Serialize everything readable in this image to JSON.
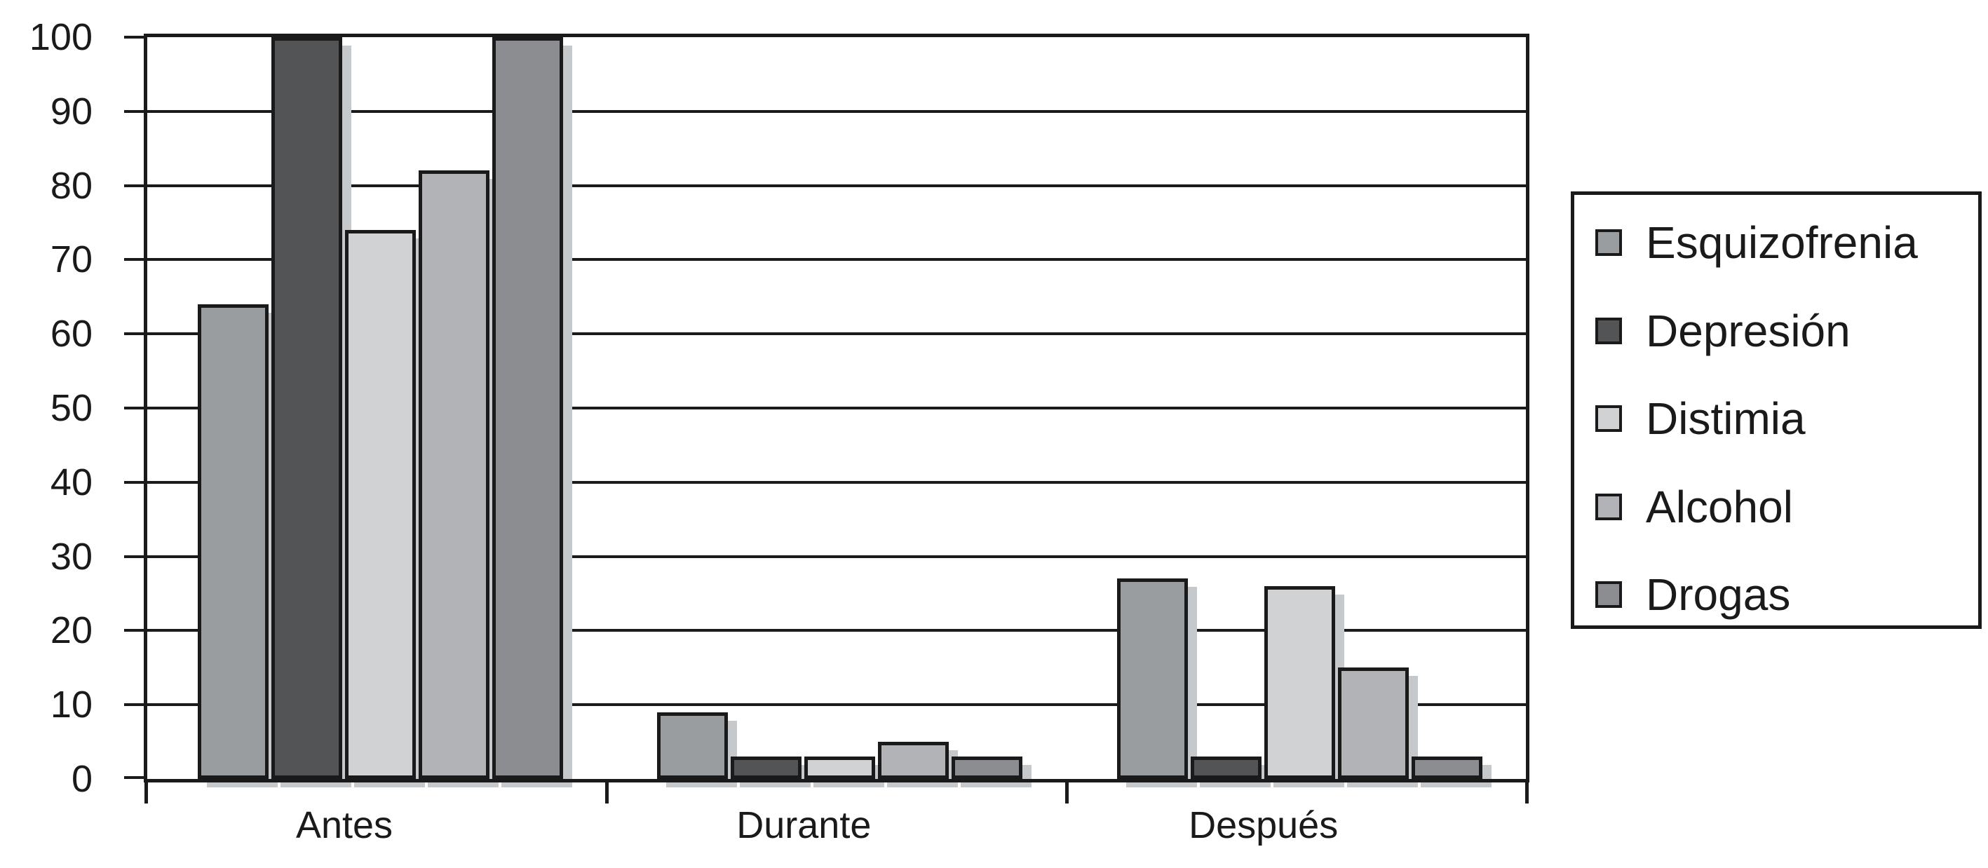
{
  "chart_data": {
    "type": "bar",
    "title": "",
    "xlabel": "",
    "ylabel": "",
    "categories": [
      "Antes",
      "Durante",
      "Después"
    ],
    "category_ids": [
      "antes",
      "durante",
      "despues"
    ],
    "series": [
      {
        "id": "esquizofrenia",
        "name": "Esquizofrenia",
        "color": "#9A9DA0",
        "values": [
          64,
          9,
          27
        ]
      },
      {
        "id": "depresion",
        "name": "Depresión",
        "color": "#535456",
        "values": [
          100,
          3,
          3
        ]
      },
      {
        "id": "distimia",
        "name": "Distimia",
        "color": "#D0D2D4",
        "values": [
          74,
          3,
          26
        ]
      },
      {
        "id": "alcohol",
        "name": "Alcohol",
        "color": "#B1B3B6",
        "values": [
          82,
          5,
          15
        ]
      },
      {
        "id": "drogas",
        "name": "Drogas",
        "color": "#8B8D90",
        "values": [
          100,
          3,
          3
        ]
      }
    ],
    "ylim": [
      0,
      100
    ],
    "ytick_step": 10,
    "yticks": [
      0,
      10,
      20,
      30,
      40,
      50,
      60,
      70,
      80,
      90,
      100
    ],
    "grid": true,
    "legend_position": "right",
    "styles": {
      "line_color": "#1a1a1a",
      "shadow_color": "#c6c9cb",
      "text_color": "#1a1a1a",
      "plot_background": "#ffffff",
      "page_background": "#ffffff"
    }
  }
}
